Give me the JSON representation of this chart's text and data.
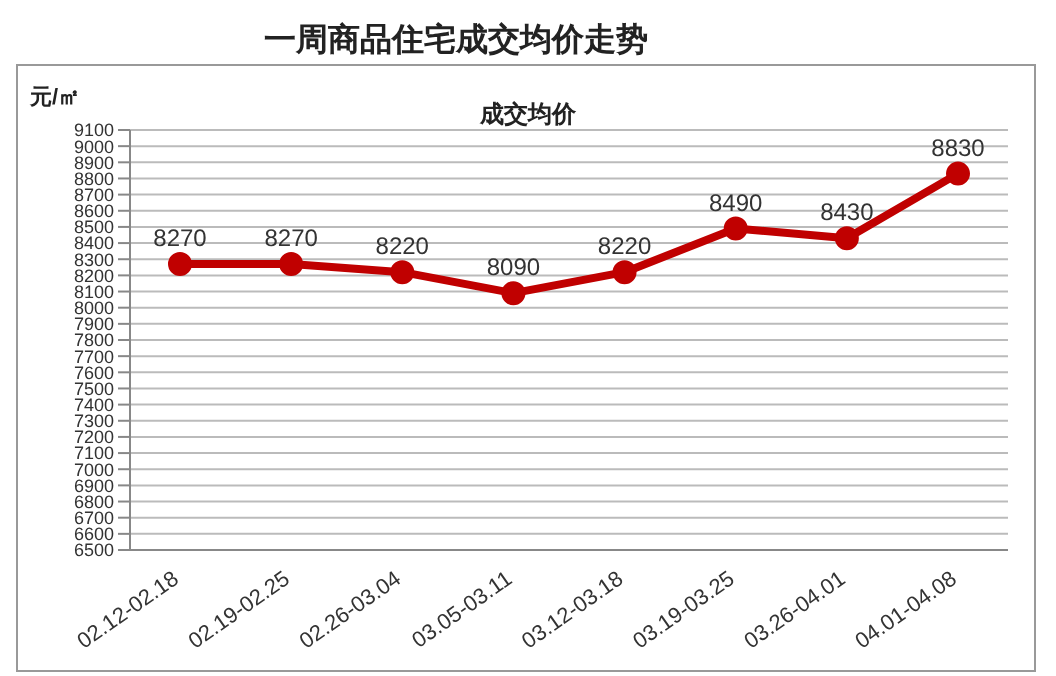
{
  "chart_data": {
    "type": "line",
    "title": "一周商品住宅成交均价走势",
    "subtitle": "成交均价",
    "ylabel": "元/㎡",
    "categories": [
      "02.12-02.18",
      "02.19-02.25",
      "02.26-03.04",
      "03.05-03.11",
      "03.12-03.18",
      "03.19-03.25",
      "03.26-04.01",
      "04.01-04.08"
    ],
    "series": [
      {
        "color": "#c00000",
        "values": [
          8270,
          8270,
          8220,
          8090,
          8220,
          8490,
          8430,
          8830
        ]
      }
    ],
    "ylim": [
      6500,
      9100
    ],
    "yticks": [
      6500,
      6600,
      6700,
      6800,
      6900,
      7000,
      7100,
      7200,
      7300,
      7400,
      7500,
      7600,
      7700,
      7800,
      7900,
      8000,
      8100,
      8200,
      8300,
      8400,
      8500,
      8600,
      8700,
      8800,
      8900,
      9000,
      9100
    ],
    "grid": "y",
    "marker": "circle",
    "line_style": "solid",
    "data_labels": true,
    "legend": false
  }
}
